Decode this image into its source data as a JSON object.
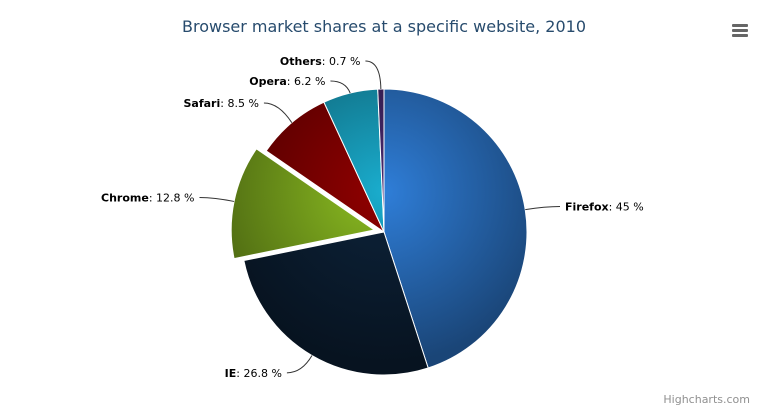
{
  "chart_data": {
    "type": "pie",
    "title": "Browser market shares at a specific website, 2010",
    "unit": "%",
    "slices": [
      {
        "name": "Firefox",
        "value": 45.0,
        "color": "#2f7ed8",
        "sliced": false
      },
      {
        "name": "IE",
        "value": 26.8,
        "color": "#0d233a",
        "sliced": false
      },
      {
        "name": "Chrome",
        "value": 12.8,
        "color": "#8bbc21",
        "sliced": true
      },
      {
        "name": "Safari",
        "value": 8.5,
        "color": "#910000",
        "sliced": false
      },
      {
        "name": "Opera",
        "value": 6.2,
        "color": "#1aadce",
        "sliced": false
      },
      {
        "name": "Others",
        "value": 0.7,
        "color": "#492970",
        "sliced": false
      }
    ],
    "labels": [
      "Firefox: 45 %",
      "IE: 26.8 %",
      "Chrome: 12.8 %",
      "Safari: 8.5 %",
      "Opera: 6.2 %",
      "Others: 0.7 %"
    ]
  },
  "menu_icon": "hamburger-menu-icon",
  "credits": "Highcharts.com"
}
